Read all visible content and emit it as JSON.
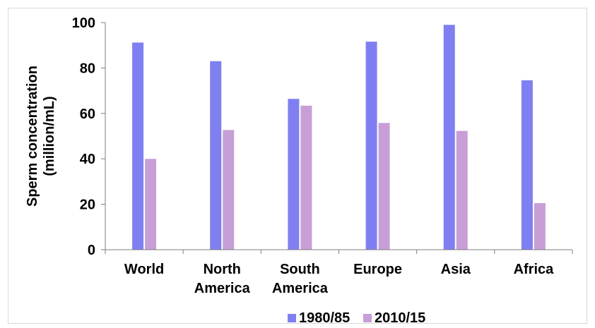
{
  "chart_data": {
    "type": "bar",
    "title": "",
    "xlabel": "",
    "ylabel": [
      "Sperm concentration",
      "(million/mL)"
    ],
    "ylim": [
      0,
      100
    ],
    "yticks": [
      0,
      20,
      40,
      60,
      80,
      100
    ],
    "grid": false,
    "legend_position": "bottom",
    "categories": [
      [
        "World"
      ],
      [
        "North",
        "America"
      ],
      [
        "South",
        "America"
      ],
      [
        "Europe"
      ],
      [
        "Asia"
      ],
      [
        "Africa"
      ]
    ],
    "series": [
      {
        "name": "1980/85",
        "color": "#7f7ff2",
        "values": [
          91.2,
          83,
          66.4,
          91.6,
          99,
          74.6
        ]
      },
      {
        "name": "2010/15",
        "color": "#c79fd6",
        "values": [
          40,
          52.7,
          63.4,
          55.8,
          52.3,
          20.5
        ]
      }
    ]
  }
}
